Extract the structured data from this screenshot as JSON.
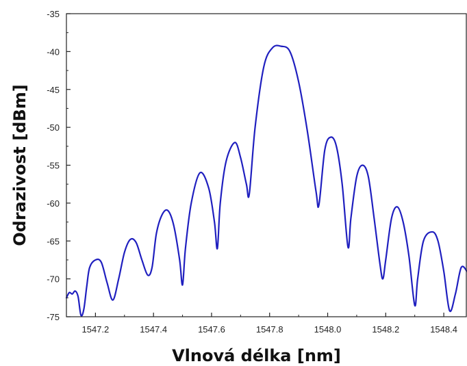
{
  "chart_data": {
    "type": "line",
    "title": "",
    "xlabel": "Vlnová délka [nm]",
    "ylabel": "Odrazivost [dBm]",
    "xlim": [
      1547.1,
      1548.48
    ],
    "ylim": [
      -75,
      -35
    ],
    "x_ticks": [
      1547.2,
      1547.4,
      1547.6,
      1547.8,
      1548.0,
      1548.2,
      1548.4
    ],
    "x_tick_labels": [
      "1547.2",
      "1547.4",
      "1547.6",
      "1547.8",
      "1548.0",
      "1548.2",
      "1548.4"
    ],
    "y_ticks": [
      -75,
      -70,
      -65,
      -60,
      -55,
      -50,
      -45,
      -40,
      -35
    ],
    "y_tick_labels": [
      "-75",
      "-70",
      "-65",
      "-60",
      "-55",
      "-50",
      "-45",
      "-40",
      "-35"
    ],
    "grid": false,
    "legend": "none",
    "line_color": "#1f1fbf",
    "series": [
      {
        "x": [
          1547.1,
          1547.11,
          1547.12,
          1547.13,
          1547.14,
          1547.15,
          1547.16,
          1547.17,
          1547.18,
          1547.2,
          1547.22,
          1547.24,
          1547.26,
          1547.28,
          1547.3,
          1547.32,
          1547.34,
          1547.36,
          1547.38,
          1547.395,
          1547.41,
          1547.43,
          1547.45,
          1547.47,
          1547.49,
          1547.5,
          1547.51,
          1547.53,
          1547.56,
          1547.59,
          1547.61,
          1547.62,
          1547.63,
          1547.65,
          1547.68,
          1547.7,
          1547.72,
          1547.73,
          1547.75,
          1547.78,
          1547.81,
          1547.84,
          1547.87,
          1547.9,
          1547.93,
          1547.96,
          1547.97,
          1547.99,
          1548.01,
          1548.03,
          1548.05,
          1548.07,
          1548.08,
          1548.1,
          1548.12,
          1548.14,
          1548.16,
          1548.18,
          1548.19,
          1548.2,
          1548.22,
          1548.24,
          1548.26,
          1548.28,
          1548.3,
          1548.31,
          1548.33,
          1548.36,
          1548.38,
          1548.4,
          1548.42,
          1548.44,
          1548.46,
          1548.48
        ],
        "y": [
          -72.5,
          -71.8,
          -72.0,
          -71.6,
          -72.3,
          -74.8,
          -74.0,
          -71.0,
          -68.5,
          -67.5,
          -67.8,
          -70.5,
          -72.8,
          -70.0,
          -66.5,
          -64.8,
          -65.2,
          -67.5,
          -69.5,
          -68.5,
          -64.0,
          -61.5,
          -61.0,
          -63.0,
          -67.5,
          -70.8,
          -66.0,
          -60.0,
          -56.0,
          -58.0,
          -62.5,
          -66.0,
          -60.0,
          -54.5,
          -52.0,
          -54.0,
          -57.5,
          -58.8,
          -50.0,
          -42.0,
          -39.5,
          -39.3,
          -40.0,
          -44.0,
          -50.5,
          -58.5,
          -60.2,
          -53.0,
          -51.3,
          -52.5,
          -57.5,
          -65.8,
          -62.0,
          -56.5,
          -55.0,
          -56.5,
          -62.0,
          -68.0,
          -70.0,
          -67.5,
          -62.0,
          -60.5,
          -62.5,
          -67.0,
          -73.5,
          -70.0,
          -65.0,
          -63.8,
          -65.0,
          -69.0,
          -74.2,
          -72.0,
          -68.5,
          -69.0
        ]
      }
    ]
  }
}
